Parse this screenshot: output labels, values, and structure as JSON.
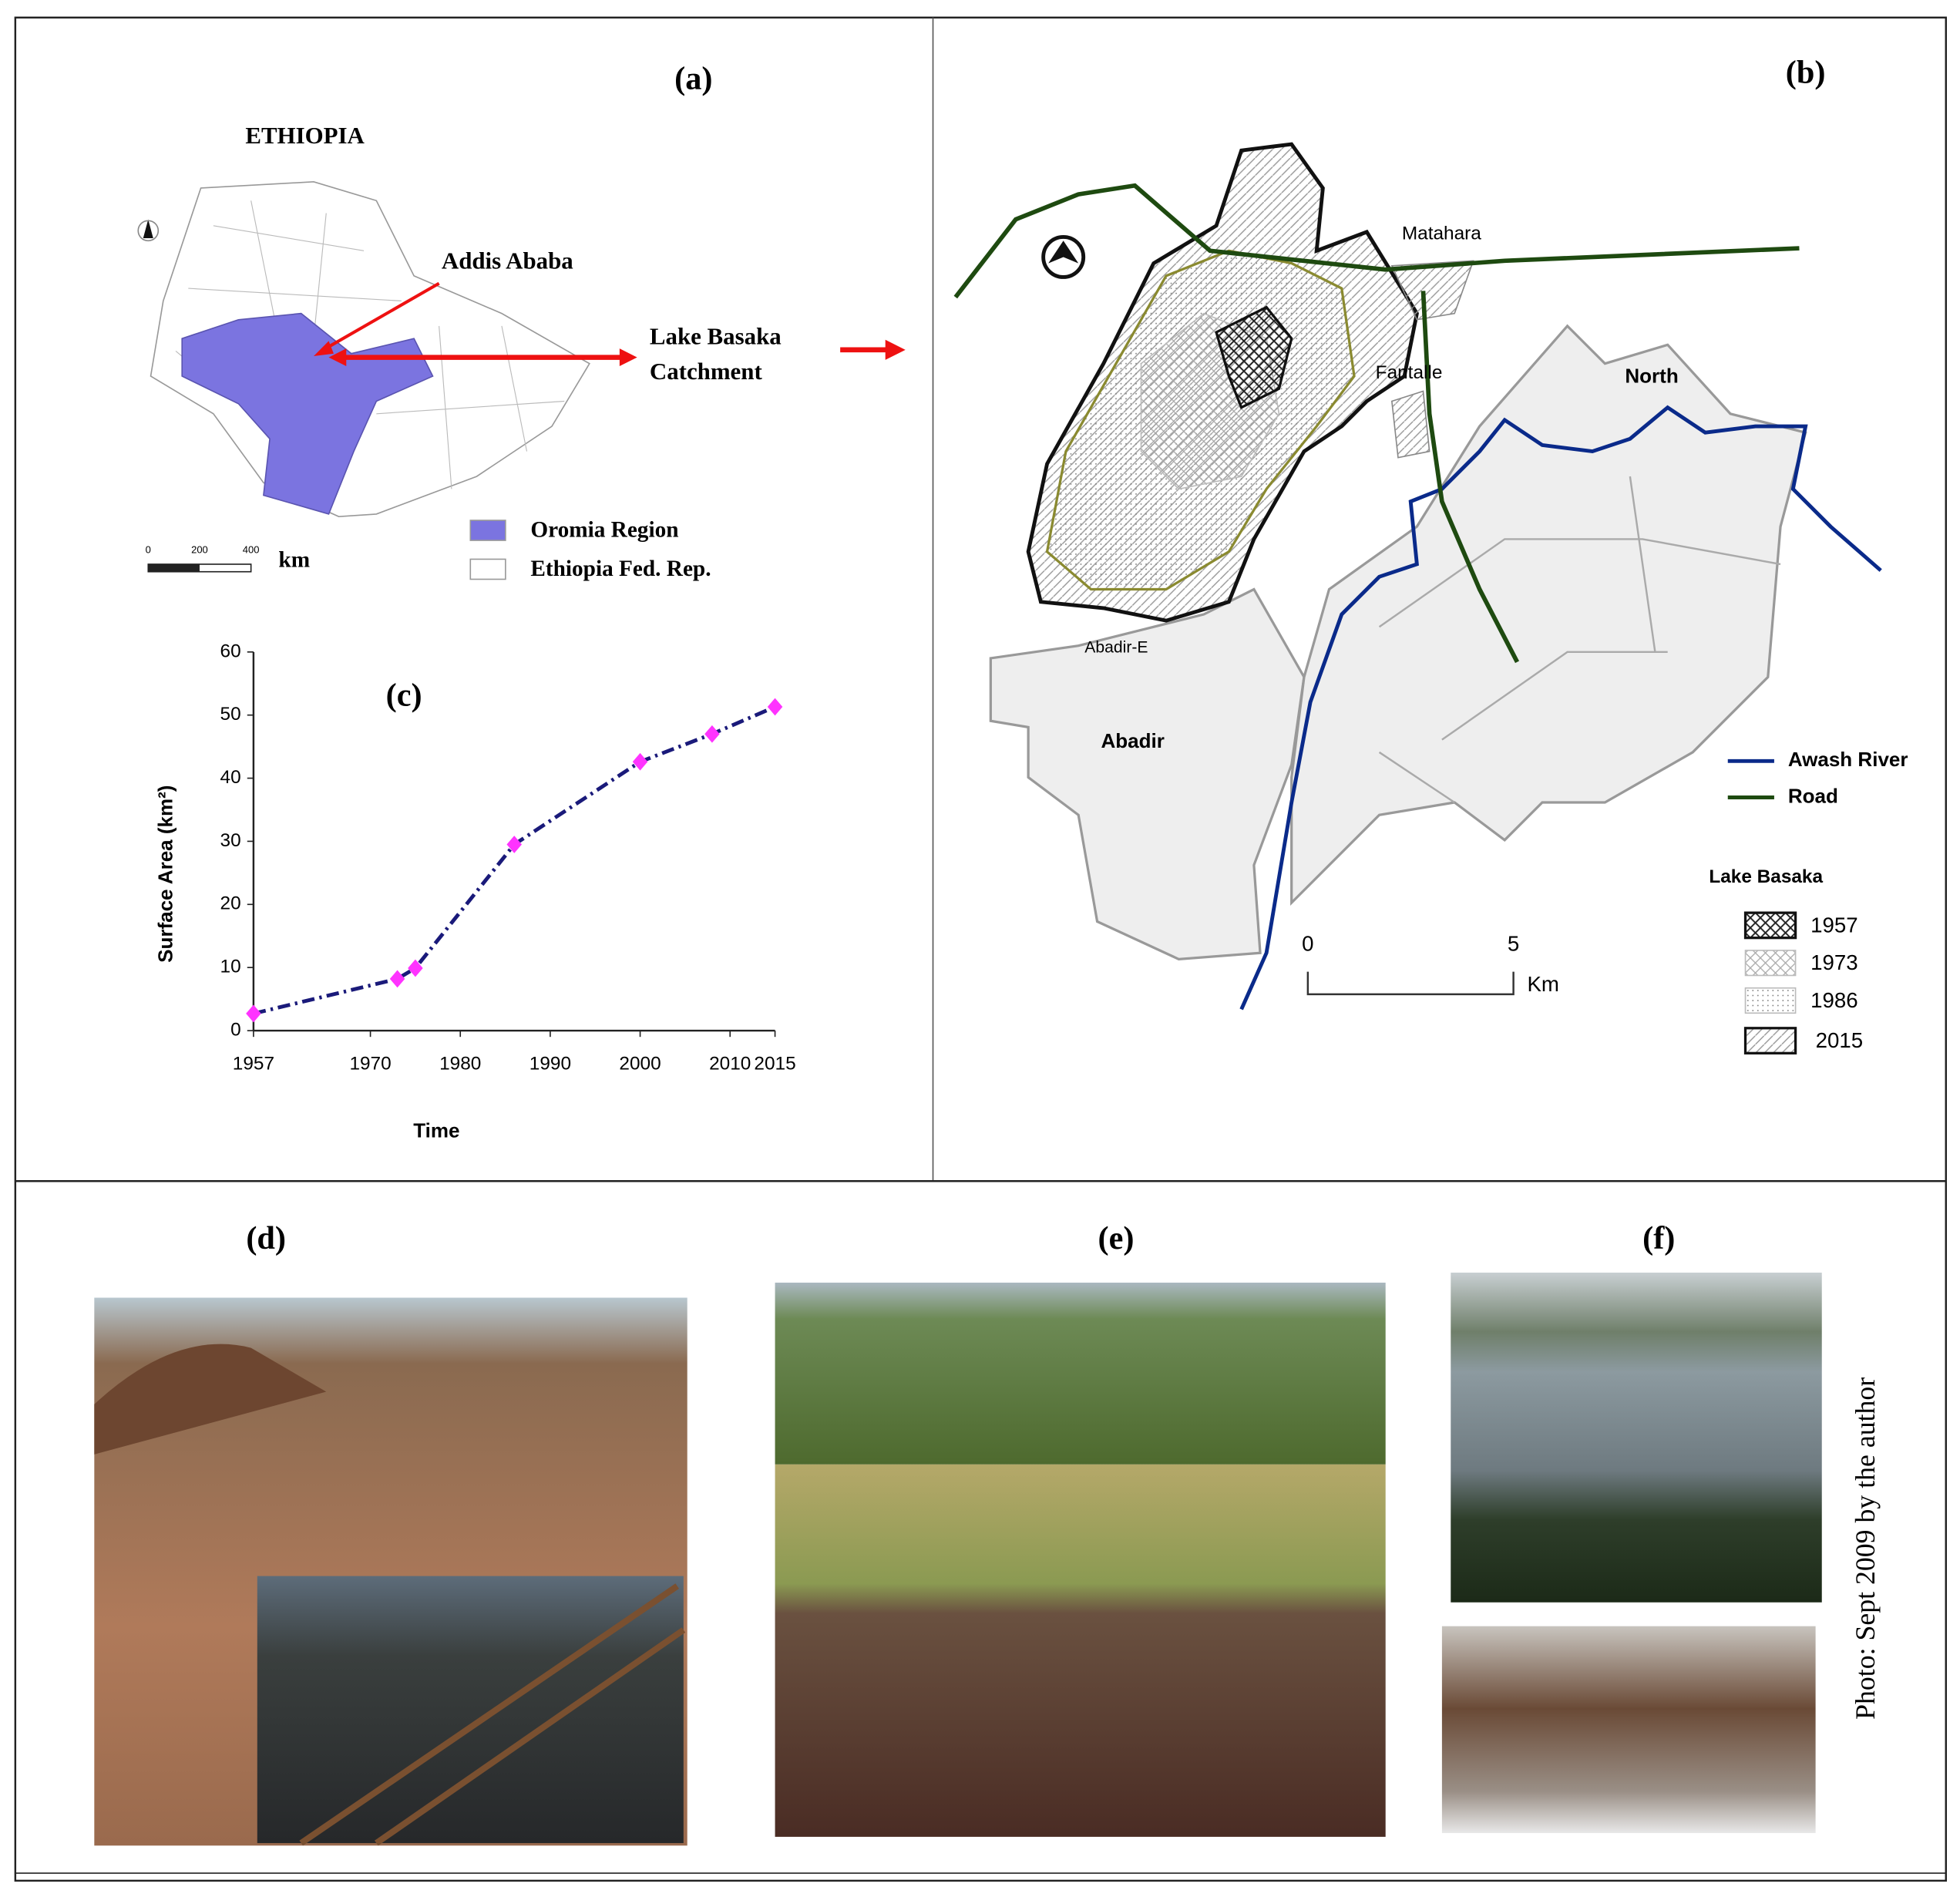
{
  "panel_a": {
    "label": "(a)",
    "country": "ETHIOPIA",
    "city": "Addis Ababa",
    "catchment": [
      "Lake Basaka",
      "Catchment"
    ],
    "scale": [
      "0",
      "200",
      "400"
    ],
    "scale_unit": "km",
    "legend": [
      "Oromia Region",
      "Ethiopia Fed. Rep."
    ]
  },
  "panel_b": {
    "label": "(b)",
    "places": [
      "Matahara",
      "Fantalle",
      "North",
      "Abadir-E",
      "Abadir"
    ],
    "legend_lines": [
      "Awash River",
      "Road"
    ],
    "legend_title": "Lake Basaka",
    "legend_years": [
      "1957",
      "1973",
      "1986",
      "2015"
    ],
    "scale": [
      "0",
      "5"
    ],
    "scale_unit": "Km"
  },
  "chart_data": {
    "type": "line",
    "title": "(c)",
    "x_label": "Time",
    "y_label": "Surface Area (km²)",
    "x": [
      1957,
      1973,
      1975,
      1986,
      2000,
      2008,
      2015
    ],
    "values": [
      2.7,
      8.2,
      9.9,
      29.5,
      42.6,
      47,
      51.3
    ],
    "color": "#1a1a7a",
    "marker_color": "#ff33ff",
    "xlim": [
      1957,
      2015
    ],
    "ylim": [
      0,
      60
    ],
    "xticks": [
      1957,
      1970,
      1980,
      1990,
      2000,
      2010,
      2015
    ],
    "yticks": [
      0,
      10,
      20,
      30,
      40,
      50,
      60
    ]
  },
  "photos": {
    "labels": [
      "(d)",
      "(e)",
      "(f)"
    ],
    "credit": "Photo: Sept 2009 by the author"
  }
}
